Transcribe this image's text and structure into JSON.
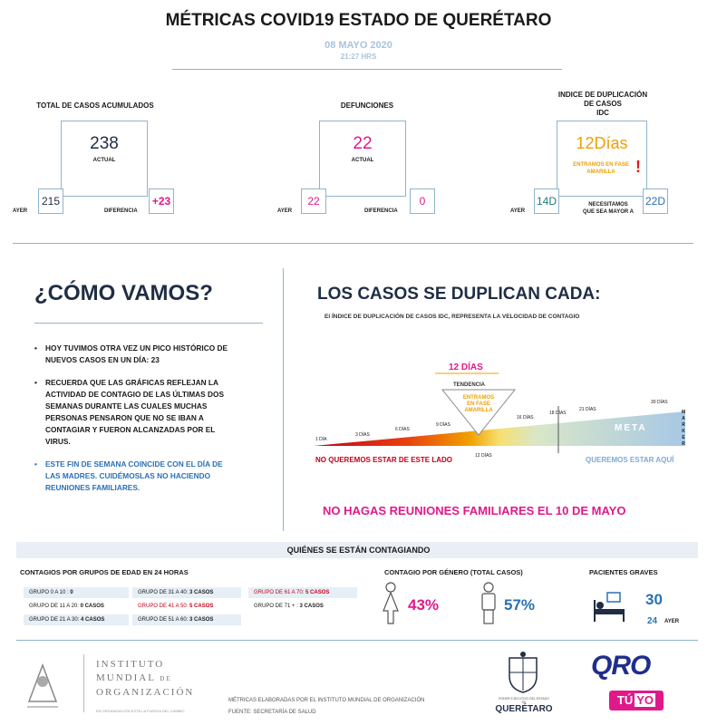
{
  "header": {
    "title": "MÉTRICAS COVID19 ESTADO DE QUERÉTARO",
    "date": "08 MAYO 2020",
    "time": "21:27 HRS"
  },
  "metrics": {
    "total": {
      "title": "TOTAL DE CASOS ACUMULADOS",
      "actual": "238",
      "actual_label": "ACTUAL",
      "yesterday": "215",
      "yesterday_label": "AYER",
      "diff": "+23",
      "diff_label": "DIFERENCIA"
    },
    "deaths": {
      "title": "DEFUNCIONES",
      "actual": "22",
      "actual_label": "ACTUAL",
      "yesterday": "22",
      "yesterday_label": "AYER",
      "diff": "0",
      "diff_label": "DIFERENCIA"
    },
    "idc": {
      "title_1": "INDICE DE DUPLICACIÓN",
      "title_2": "DE CASOS",
      "title_3": "IDC",
      "actual": "12Días",
      "phase_1": "ENTRAMOS EN FASE",
      "phase_2": "AMARILLA",
      "alert": "!",
      "yesterday": "14D",
      "yesterday_label": "AYER",
      "target": "22D",
      "target_label_1": "NECESITAMOS",
      "target_label_2": "QUE SEA MAYOR A"
    }
  },
  "como_vamos": {
    "title": "¿CÓMO VAMOS?",
    "b1_1": "HOY TUVIMOS OTRA VEZ UN PICO HISTÓRICO DE",
    "b1_2": "NUEVOS CASOS EN UN DÍA: 23",
    "b2_1": "RECUERDA QUE LAS GRÁFICAS REFLEJAN LA",
    "b2_2": "ACTIVIDAD DE CONTAGIO DE LAS ÚLTIMAS DOS",
    "b2_3": "SEMANAS DURANTE LAS CUALES MUCHAS",
    "b2_4": "PERSONAS PENSARON QUE NO SE IBAN A",
    "b2_5": "CONTAGIAR Y FUERON ALCANZADAS POR EL",
    "b2_6": "VIRUS.",
    "b3_1": "ESTE FIN DE SEMANA COINCIDE CON EL DÍA DE",
    "b3_2": "LAS MADRES. CUIDÉMOSLAS NO HACIENDO",
    "b3_3": "REUNIONES FAMILIARES."
  },
  "duplican": {
    "title": "LOS CASOS SE DUPLICAN CADA:",
    "subtitle_a": "El ÍNDICE DE DUPLICACIÓN DE CASOS ",
    "subtitle_b": "IDC",
    "subtitle_c": ", REPRESENTA LA VELOCIDAD DE CONTAGIO",
    "current": "12 DÍAS",
    "tendencia": "TENDENCIA",
    "entramos_1": "ENTRAMOS",
    "entramos_2": "EN FASE",
    "entramos_3": "AMARILLA",
    "scale": [
      "1 DÍA",
      "3 DÍAS",
      "6 DÍAS",
      "9 DÍAS",
      "12 DÍAS",
      "16 DÍAS",
      "18 DÍAS",
      "21 DÍAS",
      "30 DÍAS"
    ],
    "meta": "META",
    "marker_letters": [
      "M",
      "A",
      "R",
      "K",
      "E",
      "R"
    ],
    "left_label": "NO QUEREMOS ESTAR DE ESTE LADO",
    "right_label": "QUEREMOS ESTAR AQUÍ",
    "reuniones": "NO HAGAS REUNIONES FAMILIARES EL 10 DE MAYO"
  },
  "contagiando": {
    "title": "QUIÉNES SE ESTÁN CONTAGIANDO",
    "edad_title": "CONTAGIOS POR GRUPOS DE EDAD EN 24 HORAS",
    "groups": [
      {
        "label": "GRUPO 0 A 10 : ",
        "value": "0"
      },
      {
        "label": "GRUPO DE 11 A 20: ",
        "value": "0 CASOS"
      },
      {
        "label": "GRUPO DE 21 A 30: ",
        "value": "4 CASOS"
      },
      {
        "label": "GRUPO DE 31 A 40: ",
        "value": "3 CASOS"
      },
      {
        "label": "GRUPO DE 41 A 50: ",
        "value": "5 CASOS"
      },
      {
        "label": "GRUPO DE 51 A 60: ",
        "value": "3 CASOS"
      },
      {
        "label": "GRUPO DE 61 A 70: ",
        "value": "5 CASOS"
      },
      {
        "label": "GRUPO DE 71 + : ",
        "value": "3 CASOS"
      }
    ],
    "genero_title": "CONTAGIO POR GÉNERO (TOTAL CASOS)",
    "female_pct": "43%",
    "male_pct": "57%",
    "graves_title": "PACIENTES GRAVES",
    "graves_today": "30",
    "graves_yesterday": "24",
    "graves_yesterday_label": "AYER"
  },
  "footer": {
    "inst_1": "INSTITUTO",
    "inst_2": "MUNDIAL",
    "inst_de": "DE",
    "inst_3": "ORGANIZACIÓN",
    "inst_tag": "EN ORGANIZACIÓN ESTÁ LA FUERZA DEL CAMBIO",
    "note_1": "MÉTRICAS ELABORADAS POR EL INSTITUTO MUNDIAL DE ORGANIZACIÓN",
    "note_2": "FUENTE: SECRETARÍA DE SALUD",
    "state_1": "PODER EJECUTIVO DEL ESTADO DE",
    "state_2": "QUERÉTARO",
    "oro": "QRO",
    "tuyo_a": "TÚ",
    "tuyo_b": "YO"
  },
  "colors": {
    "magenta": "#e0198a",
    "blue": "#2a70b5",
    "orange": "#f0a000",
    "teal": "#1f7a7a",
    "line": "#8fb4cc"
  }
}
